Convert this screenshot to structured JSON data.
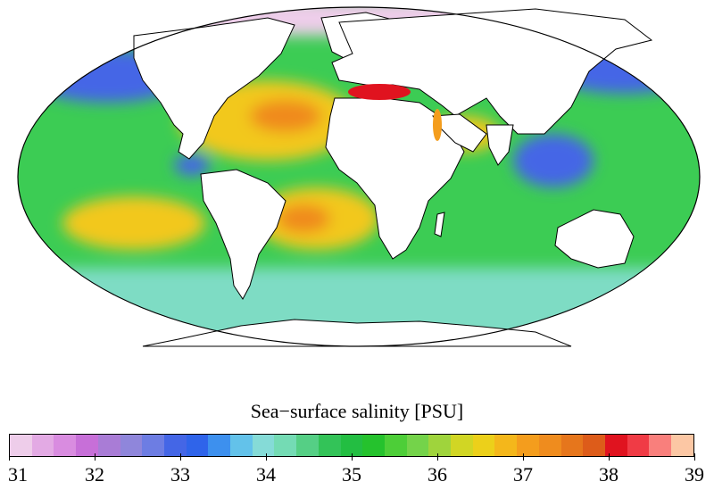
{
  "colorbar": {
    "title": "Sea−surface salinity [PSU]",
    "min": 31,
    "max": 39,
    "ticks": [
      "31",
      "32",
      "33",
      "34",
      "35",
      "36",
      "37",
      "38",
      "39"
    ],
    "colors": [
      "#eecdea",
      "#e3aae4",
      "#d98ce0",
      "#c76fd8",
      "#a97cd6",
      "#8f86db",
      "#6d7de3",
      "#4466e6",
      "#2f64ea",
      "#3d90ee",
      "#63c2ea",
      "#85dbd7",
      "#74dbb4",
      "#55cf85",
      "#33c358",
      "#23be42",
      "#25c22d",
      "#4dce38",
      "#74d34a",
      "#9fd43c",
      "#d1d624",
      "#ecd01a",
      "#f4b71b",
      "#f49d1d",
      "#ef8c1e",
      "#e6761c",
      "#dd5c1a",
      "#e0131f",
      "#f03b45",
      "#f97f7c",
      "#fcc7a4"
    ]
  },
  "map": {
    "projection": "mollweide",
    "colors": {
      "background_ocean": "#3ccc54",
      "subtropical_gyres": "#f2c81e",
      "high_salinity_core": "#f08a1c",
      "mediterranean": "#e0131f",
      "red_sea": "#f49d1d",
      "southern_ocean": "#7edcc4",
      "arctic": "#eecdea",
      "low_salinity": "#4466e6",
      "land": "#ffffff"
    }
  }
}
